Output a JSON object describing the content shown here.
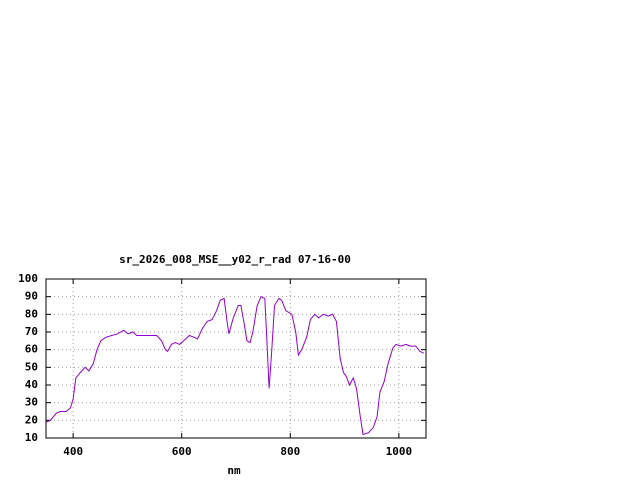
{
  "chart_data": {
    "type": "line",
    "title": "sr_2026_008_MSE__y02_r_rad 07-16-00",
    "x_label": "nm",
    "x": [
      351,
      358,
      369,
      376,
      387,
      395,
      400,
      405,
      413,
      422,
      429,
      437,
      444,
      451,
      460,
      471,
      482,
      493,
      501,
      510,
      517,
      532,
      554,
      563,
      570,
      574,
      581,
      588,
      596,
      607,
      614,
      623,
      629,
      638,
      647,
      656,
      664,
      671,
      678,
      684,
      687,
      695,
      704,
      709,
      715,
      720,
      726,
      731,
      739,
      746,
      753,
      757,
      761,
      766,
      771,
      779,
      784,
      792,
      803,
      810,
      815,
      821,
      830,
      837,
      845,
      852,
      861,
      870,
      878,
      885,
      892,
      898,
      903,
      909,
      916,
      922,
      929,
      934,
      944,
      953,
      960,
      965,
      973,
      980,
      989,
      995,
      1004,
      1013,
      1022,
      1031,
      1039,
      1046
    ],
    "series": [
      {
        "color": "#9400d3",
        "values": [
          19,
          20,
          24,
          25,
          25,
          27,
          32,
          44,
          47,
          50,
          48,
          52,
          60,
          65,
          67,
          68,
          69,
          71,
          69,
          70,
          68,
          68,
          68,
          65,
          60,
          59,
          63,
          64,
          63,
          66,
          68,
          67,
          66,
          72,
          76,
          77,
          82,
          88,
          89,
          75,
          69,
          78,
          85,
          85,
          75,
          65,
          64,
          70,
          85,
          90,
          89,
          65,
          38,
          60,
          85,
          89,
          88,
          82,
          80,
          70,
          57,
          60,
          67,
          77,
          80,
          78,
          80,
          79,
          80,
          76,
          55,
          47,
          45,
          40,
          44,
          38,
          22,
          12,
          13,
          16,
          22,
          36,
          42,
          52,
          61,
          63,
          62,
          63,
          62,
          62,
          59,
          58
        ]
      }
    ],
    "xlim": [
      350,
      1050
    ],
    "ylim": [
      10,
      100
    ],
    "xticks": [
      400,
      600,
      800,
      1000
    ],
    "yticks": [
      10,
      20,
      30,
      40,
      50,
      60,
      70,
      80,
      90,
      100
    ],
    "grid": true
  }
}
